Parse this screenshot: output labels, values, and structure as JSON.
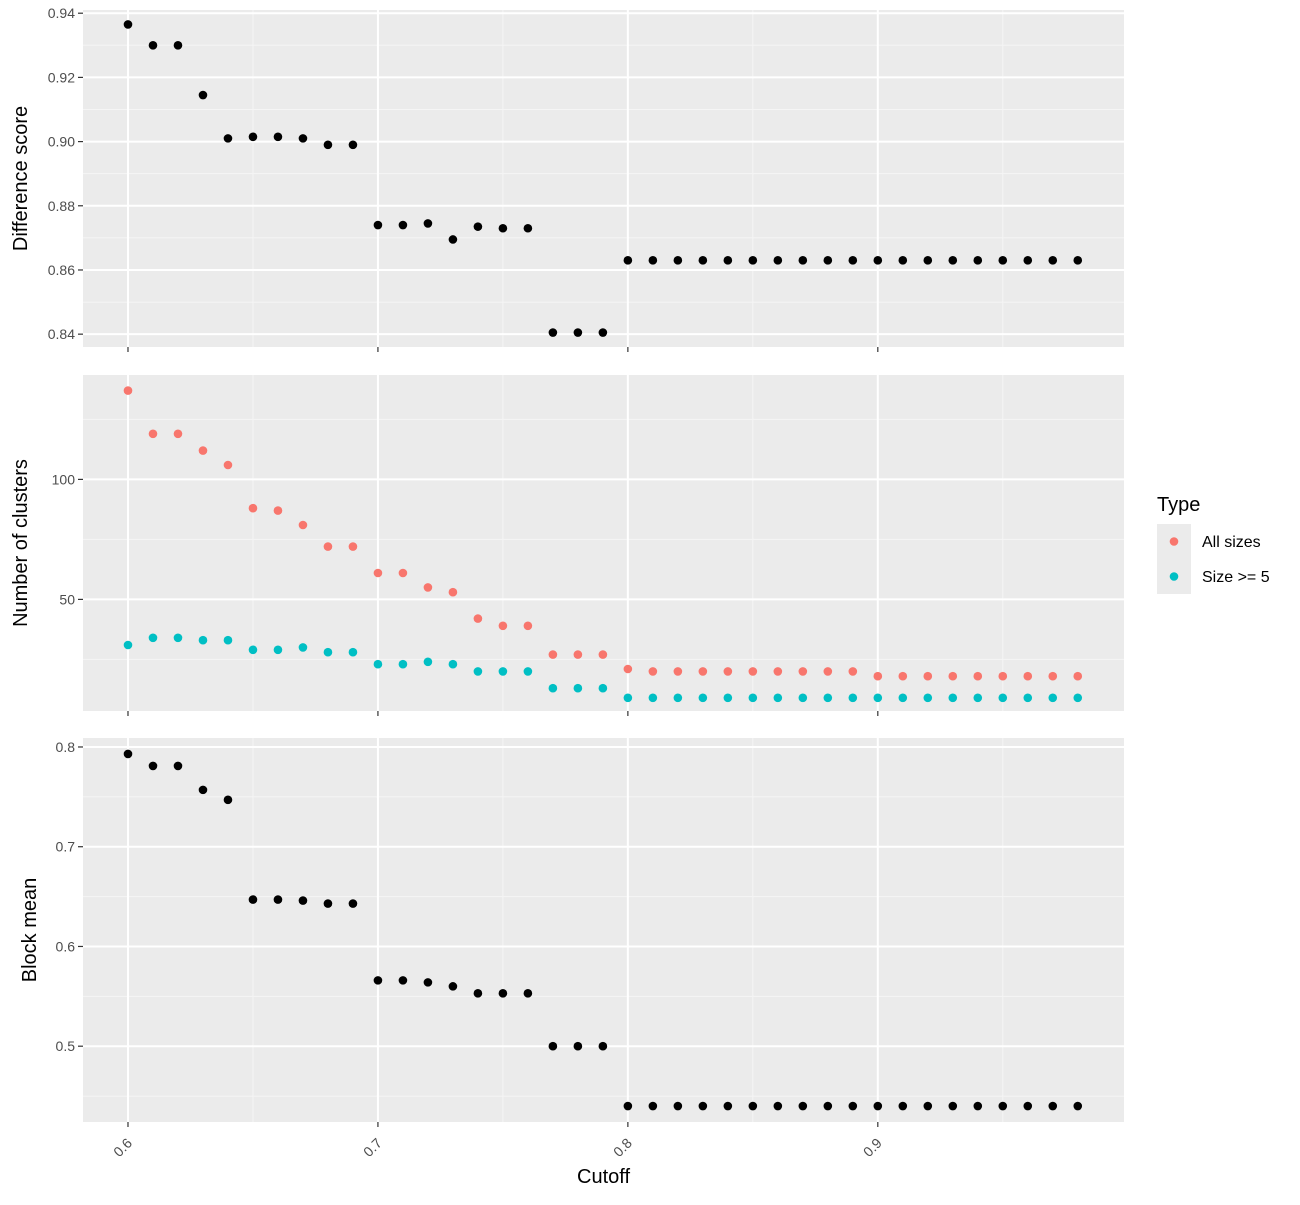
{
  "colors": {
    "panel_bg": "#ebebeb",
    "grid_major": "#ffffff",
    "grid_minor": "#f5f5f5",
    "tick": "#333333",
    "point_default": "#000000",
    "all_sizes": "#F8766D",
    "size_ge_5": "#00BFC4",
    "legend_bg": "#ebebeb"
  },
  "chart_data": [
    {
      "type": "scatter",
      "ylabel": "Difference score",
      "xlim": [
        0.582,
        0.9985
      ],
      "ylim": [
        0.836,
        0.941
      ],
      "y_ticks": [
        0.84,
        0.86,
        0.88,
        0.9,
        0.92,
        0.94
      ],
      "y_tick_labels": [
        "0.84",
        "0.86",
        "0.88",
        "0.90",
        "0.92",
        "0.94"
      ],
      "grid": true,
      "series": [
        {
          "color_key": "point_default",
          "x": [
            0.6,
            0.61,
            0.62,
            0.63,
            0.64,
            0.65,
            0.66,
            0.67,
            0.68,
            0.69,
            0.7,
            0.71,
            0.72,
            0.73,
            0.74,
            0.75,
            0.76,
            0.77,
            0.78,
            0.79,
            0.8,
            0.81,
            0.82,
            0.83,
            0.84,
            0.85,
            0.86,
            0.87,
            0.88,
            0.89,
            0.9,
            0.91,
            0.92,
            0.93,
            0.94,
            0.95,
            0.96,
            0.97,
            0.98
          ],
          "y": [
            0.9365,
            0.93,
            0.93,
            0.9145,
            0.901,
            0.9015,
            0.9015,
            0.901,
            0.899,
            0.899,
            0.874,
            0.874,
            0.8745,
            0.8695,
            0.8735,
            0.873,
            0.873,
            0.8405,
            0.8405,
            0.8405,
            0.863,
            0.863,
            0.863,
            0.863,
            0.863,
            0.863,
            0.863,
            0.863,
            0.863,
            0.863,
            0.863,
            0.863,
            0.863,
            0.863,
            0.863,
            0.863,
            0.863,
            0.863,
            0.863
          ]
        }
      ]
    },
    {
      "type": "scatter",
      "ylabel": "Number of clusters",
      "xlim": [
        0.582,
        0.9985
      ],
      "ylim": [
        3.5,
        143.5
      ],
      "y_ticks": [
        50,
        100
      ],
      "y_tick_labels": [
        "50",
        "100"
      ],
      "grid": true,
      "legend": {
        "title": "Type",
        "placement": "right",
        "entries": [
          {
            "label": "All sizes",
            "color_key": "all_sizes"
          },
          {
            "label": "Size >= 5",
            "color_key": "size_ge_5"
          }
        ]
      },
      "series": [
        {
          "name": "All sizes",
          "color_key": "all_sizes",
          "x": [
            0.6,
            0.61,
            0.62,
            0.63,
            0.64,
            0.65,
            0.66,
            0.67,
            0.68,
            0.69,
            0.7,
            0.71,
            0.72,
            0.73,
            0.74,
            0.75,
            0.76,
            0.77,
            0.78,
            0.79,
            0.8,
            0.81,
            0.82,
            0.83,
            0.84,
            0.85,
            0.86,
            0.87,
            0.88,
            0.89,
            0.9,
            0.91,
            0.92,
            0.93,
            0.94,
            0.95,
            0.96,
            0.97,
            0.98
          ],
          "y": [
            137,
            119,
            119,
            112,
            106,
            88,
            87,
            81,
            72,
            72,
            61,
            61,
            55,
            53,
            42,
            39,
            39,
            27,
            27,
            27,
            21,
            20,
            20,
            20,
            20,
            20,
            20,
            20,
            20,
            20,
            18,
            18,
            18,
            18,
            18,
            18,
            18,
            18,
            18
          ]
        },
        {
          "name": "Size >= 5",
          "color_key": "size_ge_5",
          "x": [
            0.6,
            0.61,
            0.62,
            0.63,
            0.64,
            0.65,
            0.66,
            0.67,
            0.68,
            0.69,
            0.7,
            0.71,
            0.72,
            0.73,
            0.74,
            0.75,
            0.76,
            0.77,
            0.78,
            0.79,
            0.8,
            0.81,
            0.82,
            0.83,
            0.84,
            0.85,
            0.86,
            0.87,
            0.88,
            0.89,
            0.9,
            0.91,
            0.92,
            0.93,
            0.94,
            0.95,
            0.96,
            0.97,
            0.98
          ],
          "y": [
            31,
            34,
            34,
            33,
            33,
            29,
            29,
            30,
            28,
            28,
            23,
            23,
            24,
            23,
            20,
            20,
            20,
            13,
            13,
            13,
            9,
            9,
            9,
            9,
            9,
            9,
            9,
            9,
            9,
            9,
            9,
            9,
            9,
            9,
            9,
            9,
            9,
            9,
            9
          ]
        }
      ]
    },
    {
      "type": "scatter",
      "xlabel": "Cutoff",
      "ylabel": "Block mean",
      "xlim": [
        0.582,
        0.9985
      ],
      "ylim": [
        0.424,
        0.809
      ],
      "y_ticks": [
        0.5,
        0.6,
        0.7,
        0.8
      ],
      "y_tick_labels": [
        "0.5",
        "0.6",
        "0.7",
        "0.8"
      ],
      "x_ticks": [
        0.6,
        0.7,
        0.8,
        0.9
      ],
      "x_tick_labels": [
        "0.6",
        "0.7",
        "0.8",
        "0.9"
      ],
      "grid": true,
      "series": [
        {
          "color_key": "point_default",
          "x": [
            0.6,
            0.61,
            0.62,
            0.63,
            0.64,
            0.65,
            0.66,
            0.67,
            0.68,
            0.69,
            0.7,
            0.71,
            0.72,
            0.73,
            0.74,
            0.75,
            0.76,
            0.77,
            0.78,
            0.79,
            0.8,
            0.81,
            0.82,
            0.83,
            0.84,
            0.85,
            0.86,
            0.87,
            0.88,
            0.89,
            0.9,
            0.91,
            0.92,
            0.93,
            0.94,
            0.95,
            0.96,
            0.97,
            0.98
          ],
          "y": [
            0.793,
            0.781,
            0.781,
            0.757,
            0.747,
            0.647,
            0.647,
            0.646,
            0.643,
            0.643,
            0.566,
            0.566,
            0.564,
            0.56,
            0.553,
            0.553,
            0.553,
            0.5,
            0.5,
            0.5,
            0.44,
            0.44,
            0.44,
            0.44,
            0.44,
            0.44,
            0.44,
            0.44,
            0.44,
            0.44,
            0.44,
            0.44,
            0.44,
            0.44,
            0.44,
            0.44,
            0.44,
            0.44,
            0.44
          ]
        }
      ]
    }
  ]
}
